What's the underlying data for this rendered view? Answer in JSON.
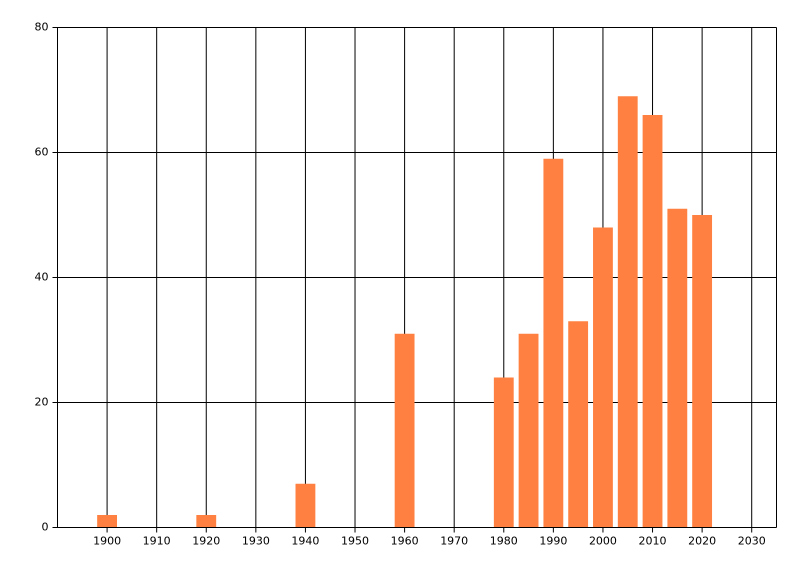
{
  "chart_data": {
    "type": "bar",
    "x": [
      1900,
      1920,
      1940,
      1960,
      1980,
      1985,
      1990,
      1995,
      2000,
      2005,
      2010,
      2015,
      2020
    ],
    "values": [
      2,
      2,
      7,
      31,
      24,
      31,
      59,
      33,
      48,
      69,
      66,
      51,
      50
    ],
    "color": "#ff8040",
    "xlim": [
      1890,
      2035
    ],
    "xticks": [
      1900,
      1910,
      1920,
      1930,
      1940,
      1950,
      1960,
      1970,
      1980,
      1990,
      2000,
      2010,
      2020,
      2030
    ],
    "ylim": [
      0,
      80
    ],
    "yticks": [
      0,
      20,
      40,
      60,
      80
    ],
    "grid": true
  }
}
